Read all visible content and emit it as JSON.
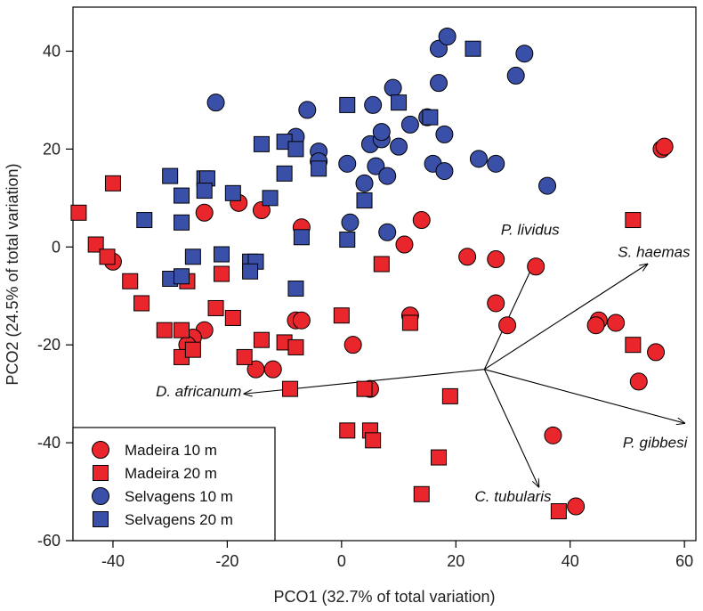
{
  "chart_data": {
    "type": "scatter",
    "xlabel": "PCO1 (32.7% of total variation)",
    "ylabel": "PCO2 (24.5% of total variation)",
    "xlim": [
      -47,
      62
    ],
    "ylim": [
      -60,
      49
    ],
    "xticks": [
      -40,
      -20,
      0,
      20,
      40,
      60
    ],
    "yticks": [
      -60,
      -40,
      -20,
      0,
      20,
      40
    ],
    "grid": false,
    "legend_position": "bottom-left",
    "colors": {
      "madeira": "#e8262b",
      "selvagens": "#3a4fa8",
      "outline": "#000000"
    },
    "series": [
      {
        "name": "Madeira 10 m",
        "color": "#e8262b",
        "marker": "circle",
        "points": [
          [
            -40,
            -3
          ],
          [
            -24,
            7
          ],
          [
            -18,
            9
          ],
          [
            -14,
            7.5
          ],
          [
            -7,
            4
          ],
          [
            -24,
            -17
          ],
          [
            -26,
            -18.5
          ],
          [
            -27,
            -20
          ],
          [
            -15,
            -25
          ],
          [
            -12,
            -25
          ],
          [
            -8,
            -15
          ],
          [
            -7,
            -15
          ],
          [
            2,
            -20
          ],
          [
            5,
            -29
          ],
          [
            11,
            0.5
          ],
          [
            14,
            5.5
          ],
          [
            12,
            -14
          ],
          [
            22,
            -2
          ],
          [
            27,
            -2.5
          ],
          [
            34,
            -4
          ],
          [
            27,
            -11.5
          ],
          [
            29,
            -16
          ],
          [
            45,
            -15
          ],
          [
            44.5,
            -16
          ],
          [
            48,
            -15.5
          ],
          [
            56,
            20
          ],
          [
            56.5,
            20.5
          ],
          [
            55,
            -21.5
          ],
          [
            52,
            -27.5
          ],
          [
            37,
            -38.5
          ],
          [
            41,
            -53
          ]
        ]
      },
      {
        "name": "Madeira 20 m",
        "color": "#e8262b",
        "marker": "square",
        "points": [
          [
            -46,
            7
          ],
          [
            -40,
            13
          ],
          [
            -43,
            0.5
          ],
          [
            -41,
            -2
          ],
          [
            -37,
            -7
          ],
          [
            -35,
            -11.5
          ],
          [
            -31,
            -17
          ],
          [
            -28,
            -17
          ],
          [
            -28,
            -22.5
          ],
          [
            -26,
            -21
          ],
          [
            -27,
            -7
          ],
          [
            -21,
            -5.5
          ],
          [
            -22,
            -12.5
          ],
          [
            -19,
            -14.5
          ],
          [
            -17,
            -22.5
          ],
          [
            -14,
            -19
          ],
          [
            -9,
            -29
          ],
          [
            -10,
            -19.5
          ],
          [
            -8,
            -20.5
          ],
          [
            0,
            -14
          ],
          [
            4,
            -29
          ],
          [
            7,
            -3.5
          ],
          [
            12,
            -15.5
          ],
          [
            1,
            -37.5
          ],
          [
            5,
            -37.5
          ],
          [
            5.5,
            -39.5
          ],
          [
            17,
            -43
          ],
          [
            19,
            -30.5
          ],
          [
            14,
            -50.5
          ],
          [
            51,
            5.5
          ],
          [
            51,
            -20
          ],
          [
            38,
            -54
          ]
        ]
      },
      {
        "name": "Selvagens 10 m",
        "color": "#3a4fa8",
        "marker": "circle",
        "points": [
          [
            -22,
            29.5
          ],
          [
            -8,
            22.5
          ],
          [
            -6,
            28
          ],
          [
            -4,
            19.5
          ],
          [
            -4,
            17.5
          ],
          [
            1,
            17
          ],
          [
            1.5,
            5
          ],
          [
            4,
            13
          ],
          [
            5,
            21
          ],
          [
            5.5,
            29
          ],
          [
            6,
            16.5
          ],
          [
            7,
            22
          ],
          [
            7,
            23.5
          ],
          [
            8,
            3
          ],
          [
            8,
            14.5
          ],
          [
            9,
            32.5
          ],
          [
            10,
            20.5
          ],
          [
            12,
            25
          ],
          [
            15,
            26.5
          ],
          [
            16,
            17
          ],
          [
            17,
            40.5
          ],
          [
            17,
            33.5
          ],
          [
            18,
            23
          ],
          [
            18,
            15.5
          ],
          [
            18.5,
            43
          ],
          [
            24,
            18
          ],
          [
            27,
            17
          ],
          [
            30.5,
            35
          ],
          [
            32,
            39.5
          ],
          [
            36,
            12.5
          ]
        ]
      },
      {
        "name": "Selvagens 20 m",
        "color": "#3a4fa8",
        "marker": "square",
        "points": [
          [
            -30,
            14.5
          ],
          [
            -28,
            10.5
          ],
          [
            -24,
            14
          ],
          [
            -23.5,
            14
          ],
          [
            -24,
            11.5
          ],
          [
            -19,
            11
          ],
          [
            -14,
            21
          ],
          [
            -10,
            21.5
          ],
          [
            -8,
            20
          ],
          [
            -10,
            15
          ],
          [
            -12.5,
            10
          ],
          [
            -4,
            16
          ],
          [
            1,
            29
          ],
          [
            4,
            9.5
          ],
          [
            10,
            29.5
          ],
          [
            15.5,
            26.5
          ],
          [
            23,
            40.5
          ],
          [
            -34.5,
            5.5
          ],
          [
            -28,
            5
          ],
          [
            -26,
            -2
          ],
          [
            -21,
            -1.5
          ],
          [
            -16,
            -3
          ],
          [
            -15,
            -3
          ],
          [
            -16,
            -5
          ],
          [
            -30,
            -6.5
          ],
          [
            -28,
            -6
          ],
          [
            -8,
            -8.5
          ],
          [
            -7,
            2
          ],
          [
            1,
            1.5
          ]
        ]
      }
    ],
    "vectors": {
      "origin": [
        25,
        -25
      ],
      "items": [
        {
          "label": "P. lividus",
          "end": [
            34,
            -2.5
          ]
        },
        {
          "label": "S. haemas",
          "end": [
            53.5,
            -3.5
          ]
        },
        {
          "label": "P. gibbesi",
          "end": [
            60,
            -36
          ]
        },
        {
          "label": "C. tubularis",
          "end": [
            34.5,
            -49
          ]
        },
        {
          "label": "D. africanum",
          "end": [
            -17,
            -30
          ]
        }
      ]
    }
  }
}
